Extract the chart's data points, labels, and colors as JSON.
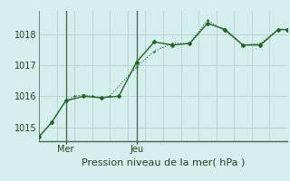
{
  "background_color": "#d4eeed",
  "plot_bg_color": "#d4eeed",
  "grid_color": "#b8c8c8",
  "vline_color": "#446644",
  "line1_color": "#226622",
  "line2_color": "#226622",
  "xlabel": "Pression niveau de la mer( hPa )",
  "xlabel_fontsize": 8,
  "xlabel_color": "#224422",
  "ytick_color": "#224422",
  "xtick_color": "#224422",
  "ylim": [
    1014.55,
    1018.75
  ],
  "xlim": [
    0,
    14
  ],
  "yticks": [
    1015,
    1016,
    1017,
    1018
  ],
  "ytick_fontsize": 7,
  "xtick_fontsize": 7,
  "xtick_positions": [
    1.5,
    5.5
  ],
  "xtick_labels": [
    "Mer",
    "Jeu"
  ],
  "vline_positions": [
    1.5,
    5.5
  ],
  "line1_x": [
    0,
    0.7,
    1.5,
    2.0,
    2.5,
    3.0,
    3.5,
    4.0,
    5.5,
    6.5,
    7.5,
    8.5,
    9.5,
    10.5,
    11.5,
    12.5,
    13.5,
    14
  ],
  "line1_y": [
    1014.7,
    1015.15,
    1015.85,
    1016.0,
    1016.05,
    1016.0,
    1015.95,
    1016.0,
    1016.95,
    1017.45,
    1017.7,
    1017.7,
    1018.45,
    1018.1,
    1017.65,
    1017.7,
    1018.15,
    1018.15
  ],
  "line2_x": [
    0,
    0.7,
    1.5,
    2.5,
    3.5,
    4.5,
    5.5,
    6.5,
    7.5,
    8.5,
    9.5,
    10.5,
    11.5,
    12.5,
    13.5,
    14
  ],
  "line2_y": [
    1014.7,
    1015.15,
    1015.85,
    1016.0,
    1015.95,
    1016.0,
    1017.1,
    1017.75,
    1017.65,
    1017.7,
    1018.35,
    1018.15,
    1017.65,
    1017.65,
    1018.15,
    1018.15
  ],
  "line1_marker": ".",
  "line1_markersize": 1.5,
  "line1_linewidth": 0.8,
  "line1_linestyle": "dotted",
  "line2_marker": "D",
  "line2_markersize": 2.0,
  "line2_linewidth": 1.0,
  "line2_linestyle": "solid"
}
